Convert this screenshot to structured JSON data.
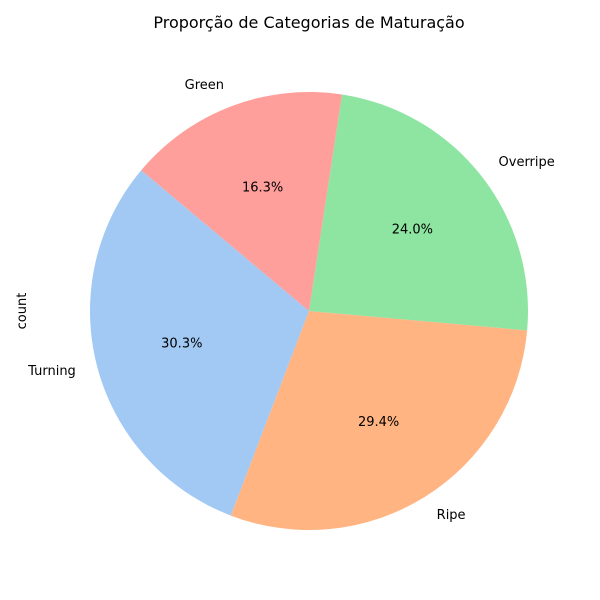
{
  "chart_data": {
    "type": "pie",
    "title": "Proporção de Categorias de Maturação",
    "ylabel": "count",
    "xlabel": "",
    "start_angle_deg": 140,
    "direction": "counterclockwise",
    "slices": [
      {
        "label": "Turning",
        "percent": 30.3,
        "pct_text": "30.3%",
        "color": "#a1c9f4"
      },
      {
        "label": "Ripe",
        "percent": 29.4,
        "pct_text": "29.4%",
        "color": "#ffb482"
      },
      {
        "label": "Overripe",
        "percent": 24.0,
        "pct_text": "24.0%",
        "color": "#8de5a1"
      },
      {
        "label": "Green",
        "percent": 16.3,
        "pct_text": "16.3%",
        "color": "#ff9f9b"
      }
    ]
  }
}
